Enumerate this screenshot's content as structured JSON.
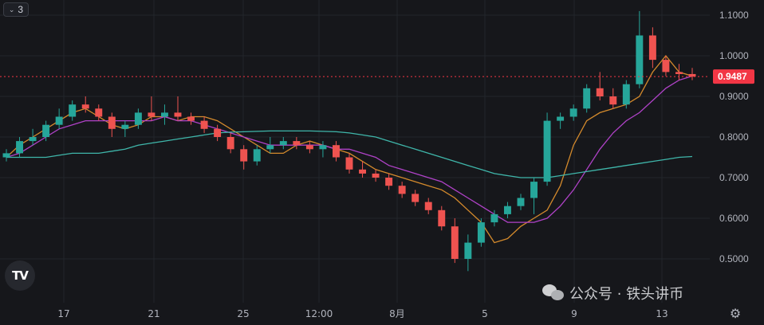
{
  "indicator_toggle": {
    "count": "3",
    "icon": "chevron-down-icon"
  },
  "logo_text": "TV",
  "watermark": {
    "text": "公众号 · 铁头讲币",
    "icon": "wechat-icon"
  },
  "settings_icon": "gear-icon",
  "colors": {
    "background": "#16171b",
    "grid": "#22252b",
    "axis_text": "#b2b5be",
    "up": "#26a69a",
    "down": "#ef5350",
    "price_badge": "#f23645",
    "ma_short": "#d48a2c",
    "ma_mid": "#b042c8",
    "ma_long": "#3fb6aa"
  },
  "chart_data": {
    "type": "candlestick",
    "y_ticks": [
      "1.1000",
      "1.0000",
      "0.9000",
      "0.8000",
      "0.7000",
      "0.6000",
      "0.5000"
    ],
    "x_ticks": [
      "17",
      "21",
      "25",
      "12:00",
      "8月",
      "5",
      "9",
      "13"
    ],
    "ylim": [
      0.4,
      1.13
    ],
    "last_price": "0.9487",
    "grid": true,
    "moving_averages": [
      {
        "color_key": "ma_short",
        "values": [
          0.75,
          0.78,
          0.8,
          0.82,
          0.84,
          0.86,
          0.87,
          0.85,
          0.83,
          0.82,
          0.83,
          0.85,
          0.85,
          0.84,
          0.85,
          0.85,
          0.84,
          0.82,
          0.8,
          0.78,
          0.76,
          0.76,
          0.78,
          0.79,
          0.78,
          0.77,
          0.76,
          0.74,
          0.72,
          0.71,
          0.7,
          0.69,
          0.68,
          0.67,
          0.65,
          0.62,
          0.59,
          0.54,
          0.55,
          0.58,
          0.6,
          0.62,
          0.68,
          0.78,
          0.84,
          0.86,
          0.87,
          0.88,
          0.9,
          0.96,
          1.0,
          0.96,
          0.95
        ]
      },
      {
        "color_key": "ma_mid",
        "values": [
          0.75,
          0.76,
          0.78,
          0.8,
          0.82,
          0.83,
          0.84,
          0.84,
          0.84,
          0.84,
          0.84,
          0.84,
          0.85,
          0.84,
          0.84,
          0.83,
          0.82,
          0.81,
          0.8,
          0.79,
          0.78,
          0.78,
          0.78,
          0.78,
          0.78,
          0.77,
          0.77,
          0.76,
          0.75,
          0.73,
          0.72,
          0.71,
          0.7,
          0.69,
          0.67,
          0.65,
          0.63,
          0.61,
          0.59,
          0.59,
          0.59,
          0.6,
          0.63,
          0.67,
          0.72,
          0.77,
          0.81,
          0.84,
          0.86,
          0.89,
          0.92,
          0.94,
          0.95
        ]
      },
      {
        "color_key": "ma_long",
        "values": [
          0.75,
          0.75,
          0.75,
          0.75,
          0.755,
          0.76,
          0.76,
          0.76,
          0.765,
          0.77,
          0.78,
          0.785,
          0.79,
          0.795,
          0.8,
          0.805,
          0.81,
          0.812,
          0.813,
          0.814,
          0.815,
          0.815,
          0.815,
          0.815,
          0.814,
          0.813,
          0.81,
          0.805,
          0.8,
          0.79,
          0.78,
          0.77,
          0.76,
          0.75,
          0.74,
          0.73,
          0.72,
          0.71,
          0.705,
          0.7,
          0.7,
          0.7,
          0.705,
          0.71,
          0.715,
          0.72,
          0.725,
          0.73,
          0.735,
          0.74,
          0.745,
          0.75,
          0.752
        ]
      }
    ],
    "candles": [
      {
        "o": 0.75,
        "h": 0.77,
        "l": 0.74,
        "c": 0.76
      },
      {
        "o": 0.76,
        "h": 0.8,
        "l": 0.75,
        "c": 0.79
      },
      {
        "o": 0.79,
        "h": 0.82,
        "l": 0.78,
        "c": 0.8
      },
      {
        "o": 0.8,
        "h": 0.84,
        "l": 0.79,
        "c": 0.83
      },
      {
        "o": 0.83,
        "h": 0.87,
        "l": 0.82,
        "c": 0.85
      },
      {
        "o": 0.85,
        "h": 0.89,
        "l": 0.84,
        "c": 0.88
      },
      {
        "o": 0.88,
        "h": 0.9,
        "l": 0.86,
        "c": 0.87
      },
      {
        "o": 0.87,
        "h": 0.88,
        "l": 0.84,
        "c": 0.85
      },
      {
        "o": 0.85,
        "h": 0.86,
        "l": 0.8,
        "c": 0.82
      },
      {
        "o": 0.82,
        "h": 0.84,
        "l": 0.8,
        "c": 0.83
      },
      {
        "o": 0.83,
        "h": 0.87,
        "l": 0.82,
        "c": 0.86
      },
      {
        "o": 0.86,
        "h": 0.9,
        "l": 0.84,
        "c": 0.85
      },
      {
        "o": 0.85,
        "h": 0.88,
        "l": 0.83,
        "c": 0.86
      },
      {
        "o": 0.86,
        "h": 0.9,
        "l": 0.84,
        "c": 0.85
      },
      {
        "o": 0.85,
        "h": 0.86,
        "l": 0.83,
        "c": 0.84
      },
      {
        "o": 0.84,
        "h": 0.85,
        "l": 0.81,
        "c": 0.82
      },
      {
        "o": 0.82,
        "h": 0.83,
        "l": 0.79,
        "c": 0.8
      },
      {
        "o": 0.8,
        "h": 0.81,
        "l": 0.76,
        "c": 0.77
      },
      {
        "o": 0.77,
        "h": 0.78,
        "l": 0.72,
        "c": 0.74
      },
      {
        "o": 0.74,
        "h": 0.78,
        "l": 0.73,
        "c": 0.77
      },
      {
        "o": 0.77,
        "h": 0.8,
        "l": 0.76,
        "c": 0.78
      },
      {
        "o": 0.78,
        "h": 0.8,
        "l": 0.77,
        "c": 0.79
      },
      {
        "o": 0.79,
        "h": 0.8,
        "l": 0.77,
        "c": 0.78
      },
      {
        "o": 0.78,
        "h": 0.79,
        "l": 0.76,
        "c": 0.77
      },
      {
        "o": 0.77,
        "h": 0.79,
        "l": 0.75,
        "c": 0.78
      },
      {
        "o": 0.78,
        "h": 0.79,
        "l": 0.74,
        "c": 0.75
      },
      {
        "o": 0.75,
        "h": 0.76,
        "l": 0.71,
        "c": 0.72
      },
      {
        "o": 0.72,
        "h": 0.74,
        "l": 0.7,
        "c": 0.71
      },
      {
        "o": 0.71,
        "h": 0.72,
        "l": 0.69,
        "c": 0.7
      },
      {
        "o": 0.7,
        "h": 0.71,
        "l": 0.67,
        "c": 0.68
      },
      {
        "o": 0.68,
        "h": 0.69,
        "l": 0.65,
        "c": 0.66
      },
      {
        "o": 0.66,
        "h": 0.67,
        "l": 0.63,
        "c": 0.64
      },
      {
        "o": 0.64,
        "h": 0.65,
        "l": 0.61,
        "c": 0.62
      },
      {
        "o": 0.62,
        "h": 0.63,
        "l": 0.57,
        "c": 0.58
      },
      {
        "o": 0.58,
        "h": 0.6,
        "l": 0.49,
        "c": 0.5
      },
      {
        "o": 0.5,
        "h": 0.56,
        "l": 0.47,
        "c": 0.54
      },
      {
        "o": 0.54,
        "h": 0.6,
        "l": 0.53,
        "c": 0.59
      },
      {
        "o": 0.59,
        "h": 0.62,
        "l": 0.58,
        "c": 0.61
      },
      {
        "o": 0.61,
        "h": 0.64,
        "l": 0.6,
        "c": 0.63
      },
      {
        "o": 0.63,
        "h": 0.66,
        "l": 0.62,
        "c": 0.65
      },
      {
        "o": 0.65,
        "h": 0.7,
        "l": 0.61,
        "c": 0.69
      },
      {
        "o": 0.69,
        "h": 0.86,
        "l": 0.68,
        "c": 0.84
      },
      {
        "o": 0.84,
        "h": 0.86,
        "l": 0.82,
        "c": 0.85
      },
      {
        "o": 0.85,
        "h": 0.88,
        "l": 0.84,
        "c": 0.87
      },
      {
        "o": 0.87,
        "h": 0.93,
        "l": 0.86,
        "c": 0.92
      },
      {
        "o": 0.92,
        "h": 0.96,
        "l": 0.89,
        "c": 0.9
      },
      {
        "o": 0.9,
        "h": 0.92,
        "l": 0.87,
        "c": 0.88
      },
      {
        "o": 0.88,
        "h": 0.94,
        "l": 0.87,
        "c": 0.93
      },
      {
        "o": 0.93,
        "h": 1.11,
        "l": 0.92,
        "c": 1.05
      },
      {
        "o": 1.05,
        "h": 1.07,
        "l": 0.97,
        "c": 0.99
      },
      {
        "o": 0.99,
        "h": 1.0,
        "l": 0.95,
        "c": 0.96
      },
      {
        "o": 0.96,
        "h": 0.98,
        "l": 0.94,
        "c": 0.955
      },
      {
        "o": 0.955,
        "h": 0.97,
        "l": 0.94,
        "c": 0.9487
      }
    ]
  }
}
